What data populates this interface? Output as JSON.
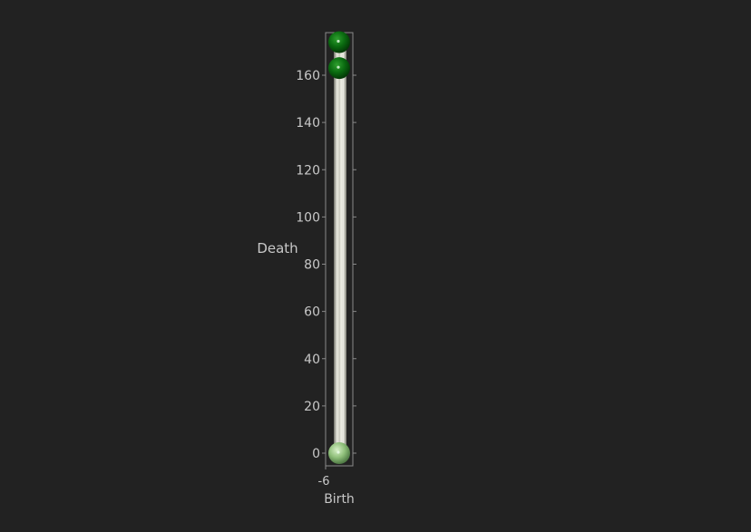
{
  "chart_data": {
    "type": "scatter",
    "title": "",
    "xlabel": "Birth",
    "ylabel": "Death",
    "xlim": [
      -6,
      6
    ],
    "ylim": [
      -6,
      176
    ],
    "x_ticks": [
      "-6"
    ],
    "y_ticks": [
      0,
      20,
      40,
      60,
      80,
      100,
      120,
      140,
      160
    ],
    "y_tick_labels": [
      "0",
      "20",
      "40",
      "60",
      "80",
      "100",
      "120",
      "140",
      "160"
    ],
    "diagonal": {
      "from": [
        -6,
        -6
      ],
      "to": [
        0,
        176
      ]
    },
    "points": [
      {
        "birth": 0,
        "death": 0,
        "kind": "diagonal",
        "color": "#8fbf7a"
      },
      {
        "birth": 0,
        "death": 163,
        "kind": "pair",
        "color": "#0a6a10"
      },
      {
        "birth": 0,
        "death": 174,
        "kind": "pair",
        "color": "#0a6a10"
      }
    ],
    "colors": {
      "background": "#222222",
      "axis": "#8a8a8a",
      "text": "#c8c8c8",
      "tube": "#d6d6cc",
      "pair_point": "#0a6a10",
      "diagonal_point": "#8fbf7a"
    }
  }
}
